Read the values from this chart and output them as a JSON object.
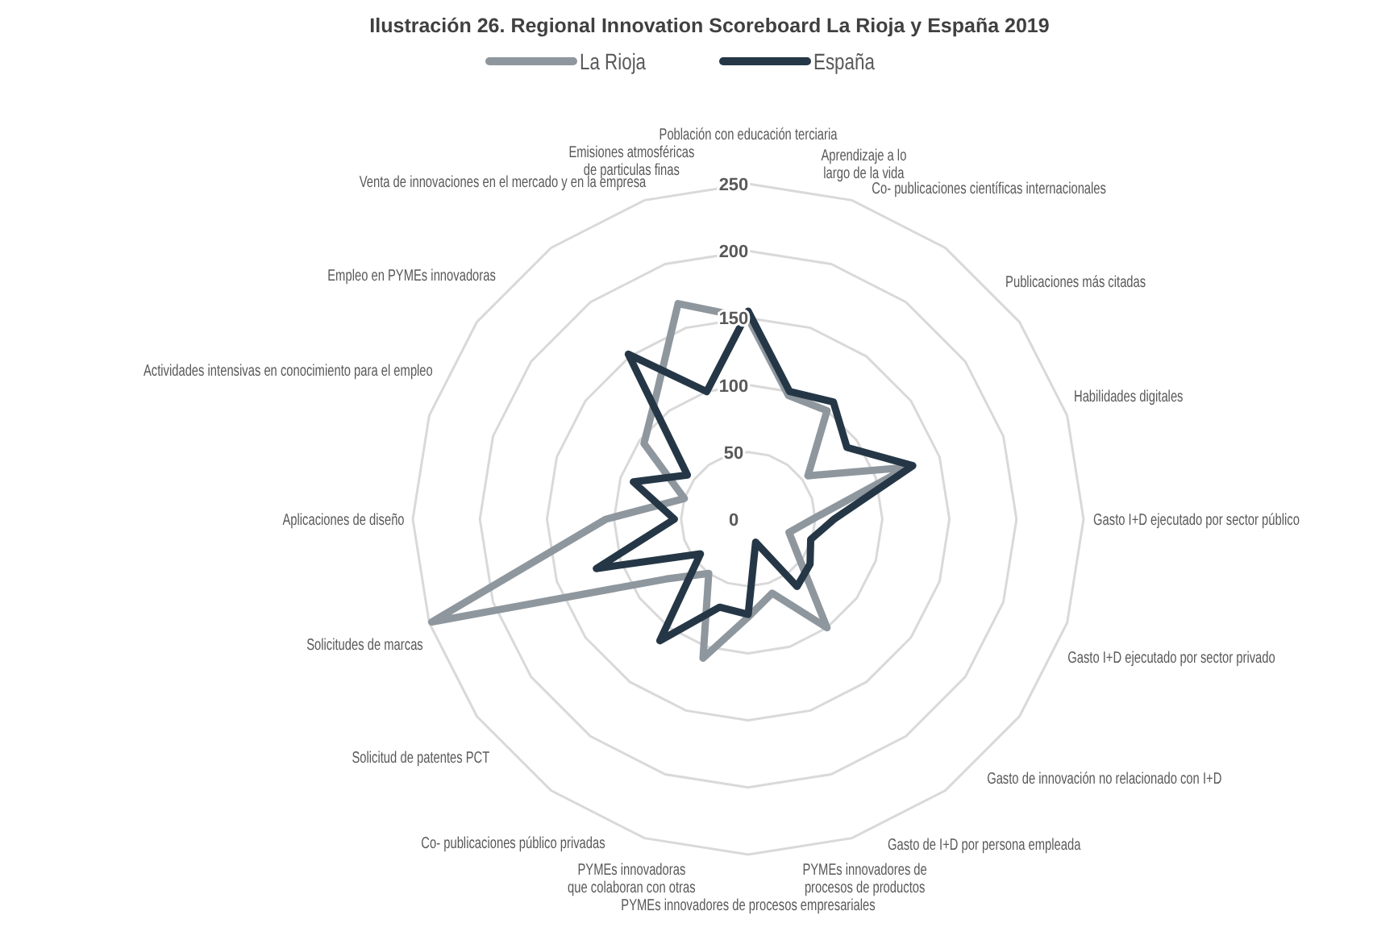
{
  "chart_data": {
    "type": "radar",
    "title": "Ilustración 26. Regional Innovation Scoreboard La Rioja y España 2019",
    "categories": [
      "Población con educación terciaria",
      "Aprendizaje a lo largo de la vida",
      "Co- publicaciones científicas internacionales",
      "Publicaciones más citadas",
      "Habilidades digitales",
      "Gasto I+D ejecutado por sector público",
      "Gasto I+D ejecutado por sector privado",
      "Gasto de innovación no relacionado con I+D",
      "Gasto de I+D por persona empleada",
      "PYMEs innovadores de procesos de productos",
      "PYMEs innovadores de procesos empresariales",
      "PYMEs innovadoras que colaboran con otras",
      "Co- publicaciones público privadas",
      "Solicitud de patentes PCT",
      "Solicitudes de marcas",
      "Aplicaciones de diseño",
      "Actividades intensivas en conocimiento para el empleo",
      "Empleo en PYMEs innovadoras",
      "Venta de innovaciones en el mercado y en la empresa",
      "Emisiones atmosféricas de particulas finas"
    ],
    "series": [
      {
        "name": "La Rioja",
        "color": "#8f979e",
        "values": [
          150,
          97,
          100,
          55,
          125,
          48,
          32,
          46,
          100,
          58,
          73,
          109,
          50,
          76,
          248,
          106,
          50,
          96,
          116,
          169
        ]
      },
      {
        "name": "España",
        "color": "#253746",
        "values": [
          155,
          100,
          108,
          91,
          129,
          64,
          49,
          57,
          62,
          18,
          71,
          69,
          112,
          44,
          119,
          55,
          90,
          56,
          152,
          100
        ]
      }
    ],
    "ylim": [
      0,
      250
    ],
    "yticks": [
      0,
      50,
      100,
      150,
      200,
      250
    ],
    "grid": true,
    "legend": "top"
  }
}
